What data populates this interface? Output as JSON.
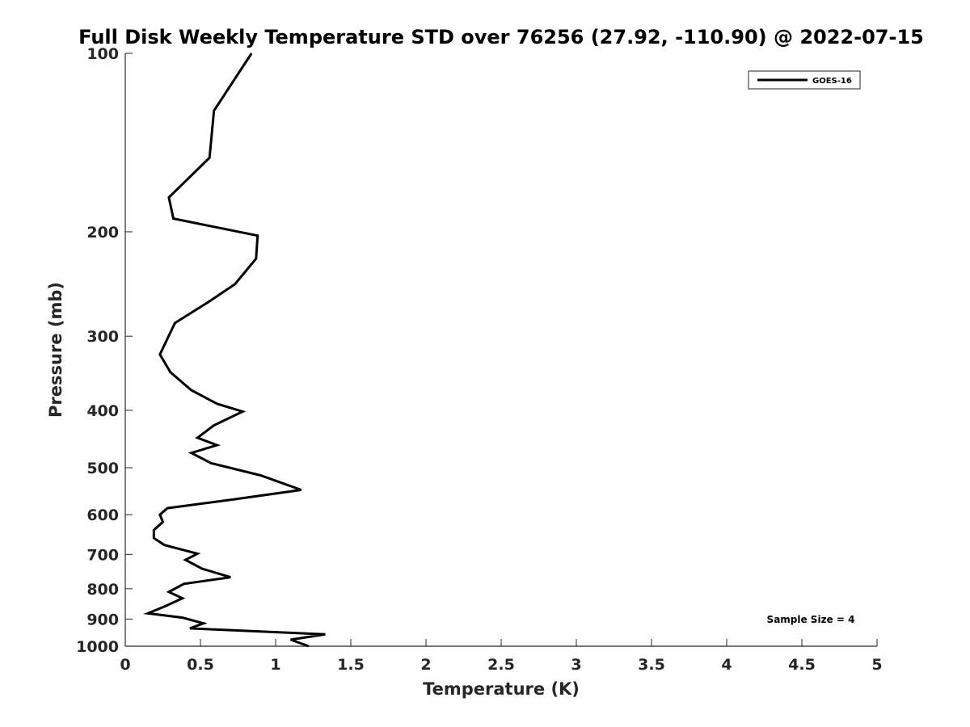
{
  "chart_data": {
    "type": "line",
    "title": "Full Disk Weekly Temperature STD over 76256 (27.92, -110.90) @ 2022-07-15",
    "xlabel": "Temperature (K)",
    "ylabel": "Pressure (mb)",
    "xlim": [
      0,
      5
    ],
    "ylim": [
      1000,
      100
    ],
    "y_scale": "log",
    "y_inverted": true,
    "x_ticks": [
      "0",
      "0.5",
      "1",
      "1.5",
      "2",
      "2.5",
      "3",
      "3.5",
      "4",
      "4.5",
      "5"
    ],
    "y_ticks": [
      "100",
      "200",
      "300",
      "400",
      "500",
      "600",
      "700",
      "800",
      "900",
      "1000"
    ],
    "grid": false,
    "legend": {
      "position": "top-right",
      "entries": [
        "GOES-16"
      ]
    },
    "annotations": [
      "Sample Size = 4"
    ],
    "series": [
      {
        "name": "GOES-16",
        "color": "#000000",
        "points": [
          [
            0.84,
            100
          ],
          [
            0.59,
            125
          ],
          [
            0.56,
            150
          ],
          [
            0.29,
            175
          ],
          [
            0.32,
            190
          ],
          [
            0.88,
            203
          ],
          [
            0.87,
            222
          ],
          [
            0.73,
            245
          ],
          [
            0.55,
            263
          ],
          [
            0.33,
            285
          ],
          [
            0.28,
            303
          ],
          [
            0.23,
            322
          ],
          [
            0.3,
            345
          ],
          [
            0.44,
            370
          ],
          [
            0.61,
            390
          ],
          [
            0.78,
            402
          ],
          [
            0.59,
            424
          ],
          [
            0.48,
            445
          ],
          [
            0.61,
            458
          ],
          [
            0.44,
            472
          ],
          [
            0.57,
            491
          ],
          [
            0.9,
            515
          ],
          [
            1.17,
            545
          ],
          [
            0.73,
            565
          ],
          [
            0.28,
            585
          ],
          [
            0.23,
            600
          ],
          [
            0.25,
            617
          ],
          [
            0.19,
            637
          ],
          [
            0.19,
            657
          ],
          [
            0.26,
            675
          ],
          [
            0.48,
            698
          ],
          [
            0.4,
            715
          ],
          [
            0.51,
            740
          ],
          [
            0.7,
            765
          ],
          [
            0.39,
            785
          ],
          [
            0.29,
            810
          ],
          [
            0.38,
            830
          ],
          [
            0.27,
            855
          ],
          [
            0.15,
            880
          ],
          [
            0.38,
            895
          ],
          [
            0.52,
            915
          ],
          [
            0.43,
            933
          ],
          [
            1.33,
            955
          ],
          [
            1.1,
            975
          ],
          [
            1.22,
            1000
          ]
        ]
      }
    ]
  }
}
